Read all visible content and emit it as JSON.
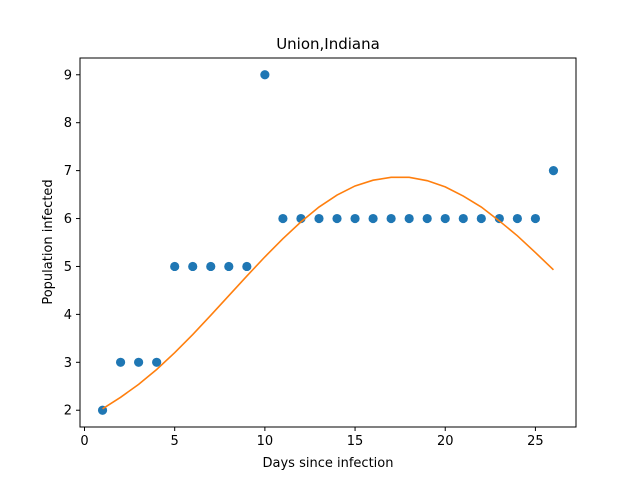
{
  "chart_data": {
    "type": "scatter",
    "title": "Union,Indiana",
    "xlabel": "Days since infection",
    "ylabel": "Population infected",
    "xlim": [
      -0.25,
      27.25
    ],
    "ylim": [
      1.65,
      9.35
    ],
    "xticks": [
      0,
      5,
      10,
      15,
      20,
      25
    ],
    "yticks": [
      2,
      3,
      4,
      5,
      6,
      7,
      8,
      9
    ],
    "grid": false,
    "series": [
      {
        "kind": "scatter",
        "color": "#1f77b4",
        "x": [
          1,
          2,
          3,
          4,
          5,
          6,
          7,
          8,
          9,
          10,
          11,
          12,
          13,
          14,
          15,
          16,
          17,
          18,
          19,
          20,
          21,
          22,
          23,
          24,
          25,
          26
        ],
        "y": [
          2,
          3,
          3,
          3,
          5,
          5,
          5,
          5,
          5,
          9,
          6,
          6,
          6,
          6,
          6,
          6,
          6,
          6,
          6,
          6,
          6,
          6,
          6,
          6,
          6,
          7
        ]
      },
      {
        "kind": "line",
        "color": "#ff7f0e",
        "x": [
          1,
          2,
          3,
          4,
          5,
          6,
          7,
          8,
          9,
          10,
          11,
          12,
          13,
          14,
          15,
          16,
          17,
          18,
          19,
          20,
          21,
          22,
          23,
          24,
          25,
          26
        ],
        "y": [
          2.03,
          2.27,
          2.54,
          2.85,
          3.2,
          3.58,
          3.98,
          4.39,
          4.8,
          5.2,
          5.58,
          5.93,
          6.24,
          6.49,
          6.68,
          6.8,
          6.86,
          6.86,
          6.79,
          6.66,
          6.47,
          6.24,
          5.95,
          5.64,
          5.29,
          4.93
        ]
      }
    ]
  }
}
